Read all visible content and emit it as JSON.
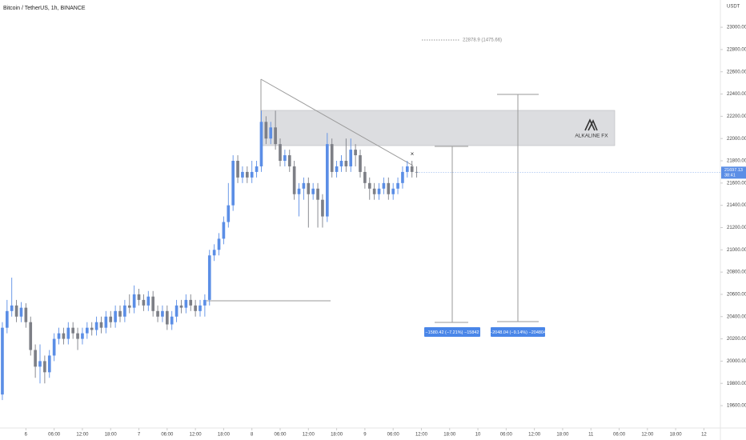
{
  "chart_data": {
    "type": "candlestick",
    "title": "Bitcoin / TetherUS, 1h, BINANCE",
    "currency": "USDT",
    "x": [
      -5,
      -4,
      -3,
      -2,
      -1,
      0,
      1,
      2,
      3,
      4,
      5,
      6,
      7,
      8,
      9,
      10,
      11,
      12,
      13,
      14,
      15,
      16,
      17,
      18,
      19,
      20,
      21,
      22,
      23,
      24,
      25,
      26,
      27,
      28,
      29,
      30,
      31,
      32,
      33,
      34,
      35,
      36,
      37,
      38,
      39,
      40,
      41,
      42,
      43,
      44,
      45,
      46,
      47,
      48,
      49,
      50,
      51,
      52,
      53,
      54,
      55,
      56,
      57,
      58,
      59,
      60,
      61,
      62,
      63,
      64,
      65,
      66,
      67,
      68,
      69,
      70,
      71,
      72,
      73,
      74,
      75,
      76,
      77,
      78,
      79,
      80,
      81,
      82,
      83
    ],
    "open": [
      19700,
      20300,
      20450,
      20500,
      20400,
      20480,
      20350,
      20100,
      19950,
      20000,
      19900,
      20050,
      20200,
      20250,
      20200,
      20300,
      20250,
      20200,
      20250,
      20300,
      20280,
      20350,
      20300,
      20400,
      20350,
      20450,
      20400,
      20500,
      20480,
      20600,
      20550,
      20500,
      20580,
      20450,
      20400,
      20450,
      20330,
      20400,
      20500,
      20480,
      20550,
      20500,
      20450,
      20500,
      20550,
      20950,
      21000,
      21100,
      21250,
      21400,
      21800,
      21650,
      21700,
      21650,
      21700,
      21750,
      22150,
      22000,
      22100,
      21950,
      21800,
      21850,
      21750,
      21500,
      21550,
      21600,
      21500,
      21550,
      21450,
      21300,
      21950,
      21700,
      21750,
      21800,
      21750,
      21900,
      21850,
      21700,
      21600,
      21550,
      21500,
      21550,
      21600,
      21500,
      21550,
      21600,
      21700,
      21750,
      21700
    ],
    "high": [
      20350,
      20550,
      20750,
      20550,
      20530,
      20520,
      20400,
      20150,
      20150,
      20050,
      20100,
      20250,
      20300,
      20300,
      20350,
      20350,
      20300,
      20300,
      20350,
      20350,
      20400,
      20400,
      20450,
      20450,
      20500,
      20500,
      20550,
      20600,
      20680,
      20650,
      20600,
      20630,
      20630,
      20500,
      20500,
      20500,
      20450,
      20550,
      20550,
      20600,
      20600,
      20550,
      20550,
      20600,
      21000,
      21050,
      21150,
      21300,
      21600,
      21850,
      21850,
      21750,
      21750,
      21800,
      21800,
      22250,
      22200,
      22150,
      22250,
      22000,
      21900,
      21900,
      21800,
      21600,
      21650,
      21650,
      21600,
      21600,
      21500,
      22050,
      22000,
      21800,
      21850,
      22000,
      22000,
      21950,
      21900,
      21750,
      21650,
      21600,
      21600,
      21650,
      21650,
      21600,
      21650,
      21750,
      21800,
      21800,
      21750
    ],
    "low": [
      19650,
      20250,
      20400,
      20350,
      20350,
      20300,
      20050,
      19850,
      19800,
      19800,
      19850,
      20000,
      20150,
      20150,
      20150,
      20200,
      20100,
      20150,
      20200,
      20230,
      20230,
      20250,
      20250,
      20300,
      20300,
      20350,
      20350,
      20430,
      20430,
      20500,
      20450,
      20450,
      20400,
      20350,
      20350,
      20280,
      20280,
      20350,
      20430,
      20430,
      20450,
      20400,
      20400,
      20400,
      20500,
      20900,
      20950,
      21050,
      21200,
      21350,
      21600,
      21600,
      21600,
      21600,
      21650,
      21700,
      21950,
      21950,
      21900,
      21750,
      21750,
      21700,
      21450,
      21300,
      21450,
      21200,
      21450,
      21200,
      21200,
      21250,
      21650,
      21650,
      21700,
      21700,
      21700,
      21750,
      21650,
      21550,
      21450,
      21450,
      21450,
      21500,
      21450,
      21450,
      21500,
      21550,
      21650,
      21650,
      21650
    ],
    "close": [
      20300,
      20450,
      20500,
      20400,
      20480,
      20350,
      20100,
      19950,
      20000,
      19900,
      20050,
      20200,
      20250,
      20200,
      20300,
      20250,
      20200,
      20250,
      20300,
      20280,
      20350,
      20300,
      20400,
      20350,
      20450,
      20400,
      20500,
      20480,
      20600,
      20550,
      20500,
      20580,
      20450,
      20400,
      20450,
      20330,
      20400,
      20500,
      20480,
      20550,
      20500,
      20450,
      20500,
      20550,
      20950,
      21000,
      21100,
      21250,
      21400,
      21800,
      21650,
      21700,
      21650,
      21700,
      21750,
      22150,
      22000,
      22100,
      21950,
      21800,
      21850,
      21750,
      21500,
      21550,
      21600,
      21500,
      21550,
      21450,
      21300,
      21950,
      21700,
      21750,
      21800,
      21750,
      21900,
      21850,
      21700,
      21600,
      21550,
      21500,
      21550,
      21600,
      21500,
      21550,
      21600,
      21700,
      21750,
      21700,
      21697.13
    ],
    "up_color": "#5b8ee6",
    "down_color": "#7d7f86",
    "xlim": [
      -5.5,
      147.5
    ],
    "xticks": [
      {
        "value": 0,
        "label": "6"
      },
      {
        "value": 6,
        "label": "06:00"
      },
      {
        "value": 12,
        "label": "12:00"
      },
      {
        "value": 18,
        "label": "18:00"
      },
      {
        "value": 24,
        "label": "7"
      },
      {
        "value": 30,
        "label": "06:00"
      },
      {
        "value": 36,
        "label": "12:00"
      },
      {
        "value": 42,
        "label": "18:00"
      },
      {
        "value": 48,
        "label": "8"
      },
      {
        "value": 54,
        "label": "06:00"
      },
      {
        "value": 60,
        "label": "12:00"
      },
      {
        "value": 66,
        "label": "18:00"
      },
      {
        "value": 72,
        "label": "9"
      },
      {
        "value": 78,
        "label": "06:00"
      },
      {
        "value": 84,
        "label": "12:00"
      },
      {
        "value": 90,
        "label": "18:00"
      },
      {
        "value": 96,
        "label": "10"
      },
      {
        "value": 102,
        "label": "06:00"
      },
      {
        "value": 108,
        "label": "12:00"
      },
      {
        "value": 114,
        "label": "18:00"
      },
      {
        "value": 120,
        "label": "11"
      },
      {
        "value": 126,
        "label": "06:00"
      },
      {
        "value": 132,
        "label": "12:00"
      },
      {
        "value": 138,
        "label": "18:00"
      },
      {
        "value": 144,
        "label": "12"
      }
    ],
    "ylim": [
      19399,
      23245
    ],
    "yticks": [
      {
        "value": 19600,
        "label": "19600.00"
      },
      {
        "value": 19800,
        "label": "19800.00"
      },
      {
        "value": 20000,
        "label": "20000.00"
      },
      {
        "value": 20200,
        "label": "20200.00"
      },
      {
        "value": 20400,
        "label": "20400.00"
      },
      {
        "value": 20600,
        "label": "20600.00"
      },
      {
        "value": 20800,
        "label": "20800.00"
      },
      {
        "value": 21000,
        "label": "21000.00"
      },
      {
        "value": 21200,
        "label": "21200.00"
      },
      {
        "value": 21400,
        "label": "21400.00"
      },
      {
        "value": 21600,
        "label": "21600.00"
      },
      {
        "value": 21800,
        "label": "21800.00"
      },
      {
        "value": 22000,
        "label": "22000.00"
      },
      {
        "value": 22200,
        "label": "22200.00"
      },
      {
        "value": 22400,
        "label": "22400.00"
      },
      {
        "value": 22600,
        "label": "22600.00"
      },
      {
        "value": 22800,
        "label": "22800.00"
      },
      {
        "value": 23000,
        "label": "23000.00"
      }
    ],
    "grid": false,
    "countdown": "38:41",
    "annotations": {
      "target_label": "22878.9 (1475.66)",
      "logo": "ALKALINE FX",
      "marker": "×",
      "measure_1": "−1580.42 (−7.21%) −15842",
      "measure_2": "−2048.04 (−9.14%) −204804"
    }
  }
}
